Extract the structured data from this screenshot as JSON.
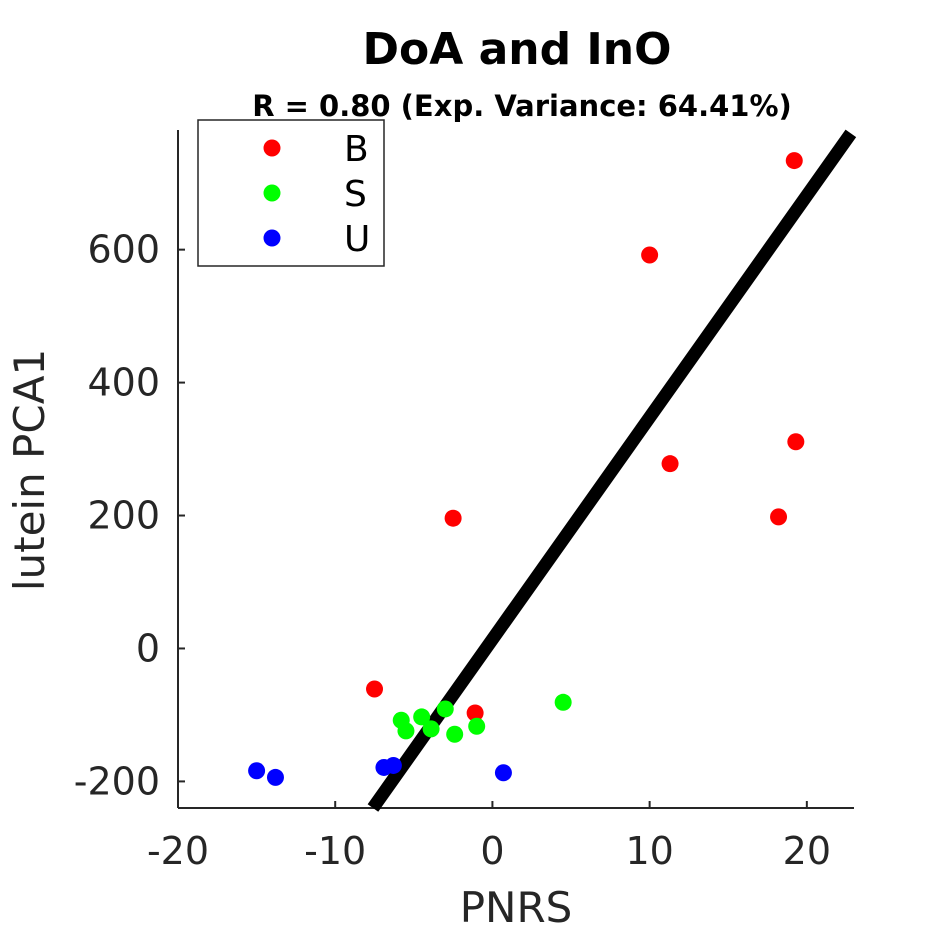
{
  "chart_data": {
    "type": "scatter",
    "title": "DoA and InO",
    "subtitle": "R = 0.80 (Exp. Variance: 64.41%)",
    "xlabel": "PNRS",
    "ylabel": "lutein PCA1",
    "xlim": [
      -20,
      23
    ],
    "ylim": [
      -240,
      780
    ],
    "xticks": [
      -20,
      -10,
      0,
      10,
      20
    ],
    "yticks": [
      -200,
      0,
      200,
      400,
      600
    ],
    "grid": false,
    "legend_position": "top-left",
    "series": [
      {
        "name": "B",
        "color": "#ff0000",
        "points": [
          [
            19.2,
            734
          ],
          [
            10.0,
            592
          ],
          [
            19.3,
            311
          ],
          [
            11.3,
            278
          ],
          [
            18.2,
            198
          ],
          [
            -2.5,
            196
          ],
          [
            -7.5,
            -61
          ],
          [
            -1.1,
            -97
          ]
        ]
      },
      {
        "name": "S",
        "color": "#00ff00",
        "points": [
          [
            4.5,
            -81
          ],
          [
            -5.8,
            -108
          ],
          [
            -5.5,
            -124
          ],
          [
            -4.5,
            -103
          ],
          [
            -3.9,
            -121
          ],
          [
            -3.0,
            -91
          ],
          [
            -2.4,
            -129
          ],
          [
            -1.0,
            -117
          ]
        ]
      },
      {
        "name": "U",
        "color": "#0000ff",
        "points": [
          [
            -15.0,
            -184
          ],
          [
            -13.8,
            -194
          ],
          [
            -6.9,
            -179
          ],
          [
            -6.3,
            -176
          ],
          [
            0.7,
            -187
          ]
        ]
      }
    ],
    "fit_line": {
      "color": "#000000",
      "points": [
        [
          -7.6,
          -240
        ],
        [
          22.8,
          775
        ]
      ]
    }
  }
}
